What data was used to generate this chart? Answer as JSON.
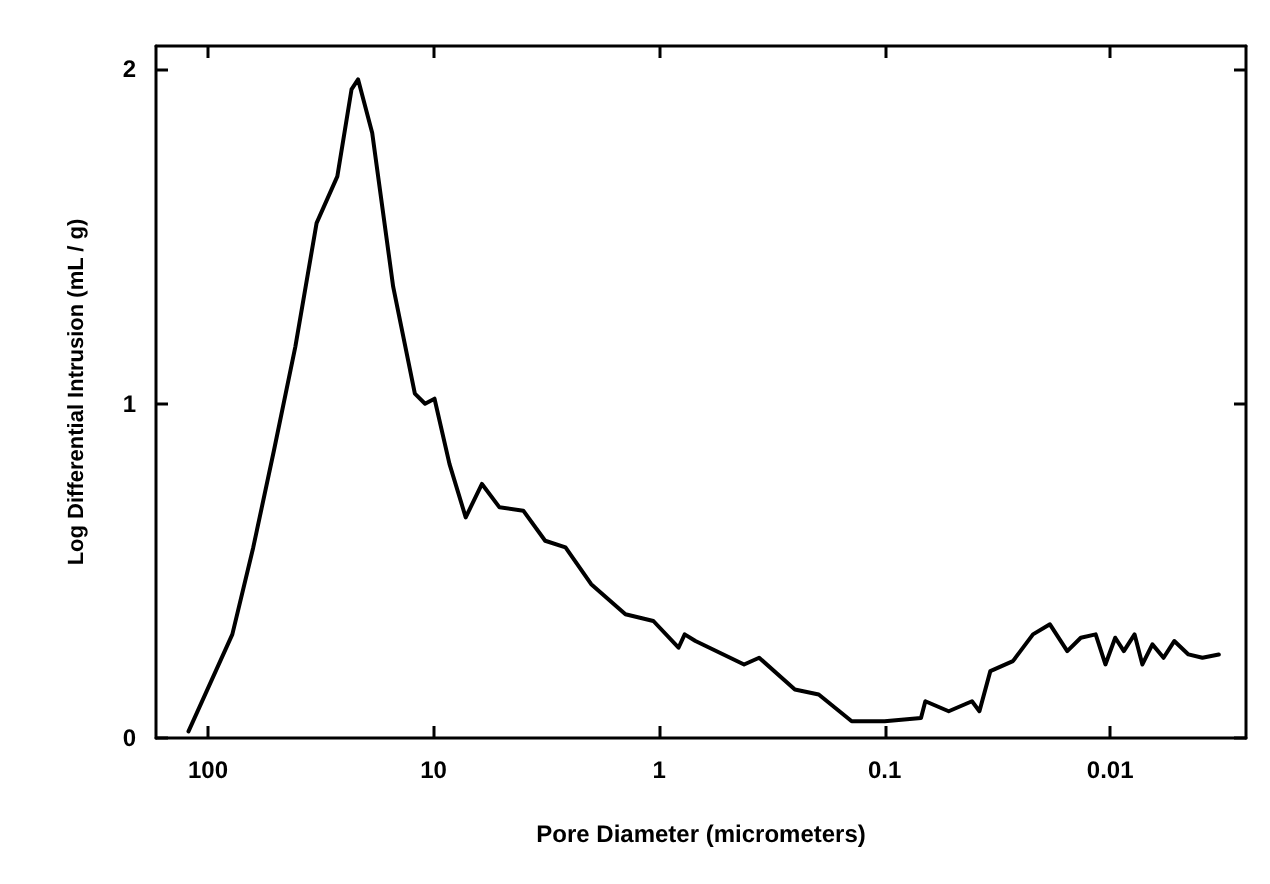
{
  "chart_data": {
    "type": "line",
    "xlabel": "Pore Diameter (micrometers)",
    "ylabel": "Log Differential Intrusion (mL / g)",
    "x": [
      122,
      78,
      63,
      51,
      41,
      33,
      26.7,
      23.1,
      21.6,
      18.7,
      15.1,
      12.1,
      10.9,
      9.9,
      8.5,
      7.2,
      6.1,
      5.1,
      4.0,
      3.2,
      2.6,
      2.0,
      1.41,
      1.06,
      0.82,
      0.77,
      0.69,
      0.42,
      0.36,
      0.25,
      0.196,
      0.14,
      0.1,
      0.069,
      0.066,
      0.052,
      0.041,
      0.038,
      0.034,
      0.027,
      0.022,
      0.0185,
      0.0155,
      0.0135,
      0.0116,
      0.0105,
      0.0095,
      0.0087,
      0.0078,
      0.0072,
      0.0065,
      0.0058,
      0.0052,
      0.0045,
      0.0039,
      0.0033
    ],
    "series": [
      {
        "color": "#000000",
        "values": [
          0.02,
          0.31,
          0.57,
          0.86,
          1.17,
          1.54,
          1.68,
          1.94,
          1.97,
          1.81,
          1.35,
          1.03,
          1.0,
          1.015,
          0.82,
          0.66,
          0.76,
          0.69,
          0.68,
          0.59,
          0.57,
          0.46,
          0.37,
          0.35,
          0.27,
          0.31,
          0.29,
          0.22,
          0.24,
          0.145,
          0.13,
          0.05,
          0.05,
          0.06,
          0.11,
          0.08,
          0.11,
          0.08,
          0.2,
          0.23,
          0.31,
          0.34,
          0.26,
          0.3,
          0.31,
          0.22,
          0.3,
          0.26,
          0.31,
          0.22,
          0.28,
          0.24,
          0.29,
          0.25,
          0.24,
          0.25
        ]
      }
    ],
    "xlim": [
      170,
      0.0025
    ],
    "xticks": [
      100,
      10,
      1,
      0.1,
      0.01
    ],
    "log": "x",
    "ylim": [
      0,
      2.07
    ],
    "yticks": [
      0,
      1,
      2
    ],
    "grid": false,
    "marker": "none",
    "line_style": "solid"
  }
}
